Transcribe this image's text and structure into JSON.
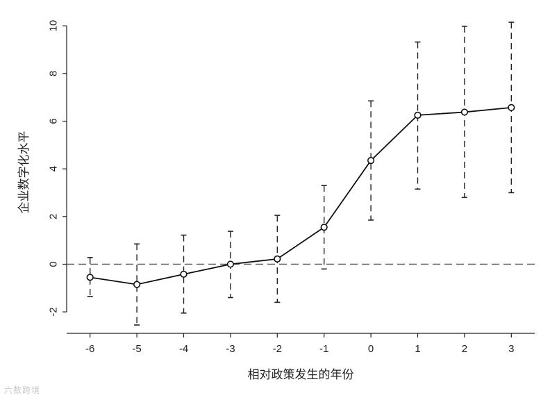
{
  "chart_data": {
    "type": "line",
    "title": "",
    "xlabel": "相对政策发生的年份",
    "ylabel": "企业数字化水平",
    "x": [
      -6,
      -5,
      -4,
      -3,
      -2,
      -1,
      0,
      1,
      2,
      3
    ],
    "x_tick_labels": [
      "-6",
      "-5",
      "-4",
      "-3",
      "-2",
      "-1",
      "0",
      "1",
      "2",
      "3"
    ],
    "y_ticks": [
      -2,
      0,
      2,
      4,
      6,
      8,
      10
    ],
    "y_tick_labels": [
      "-2",
      "0",
      "2",
      "4",
      "6",
      "8",
      "10"
    ],
    "xlim": [
      -6.5,
      3.5
    ],
    "ylim": [
      -2.9,
      10.5
    ],
    "reference_line_y": 0,
    "grid": false,
    "series": [
      {
        "values": [
          -0.55,
          -0.85,
          -0.42,
          0.0,
          0.22,
          1.55,
          4.35,
          6.25,
          6.38,
          6.57
        ],
        "ci_lower": [
          -1.35,
          -2.55,
          -2.05,
          -1.4,
          -1.6,
          -0.2,
          1.85,
          3.15,
          2.8,
          3.0
        ],
        "ci_upper": [
          0.28,
          0.85,
          1.22,
          1.38,
          2.05,
          3.3,
          6.85,
          9.32,
          9.98,
          10.15
        ]
      }
    ]
  },
  "watermark": "六数跨境"
}
